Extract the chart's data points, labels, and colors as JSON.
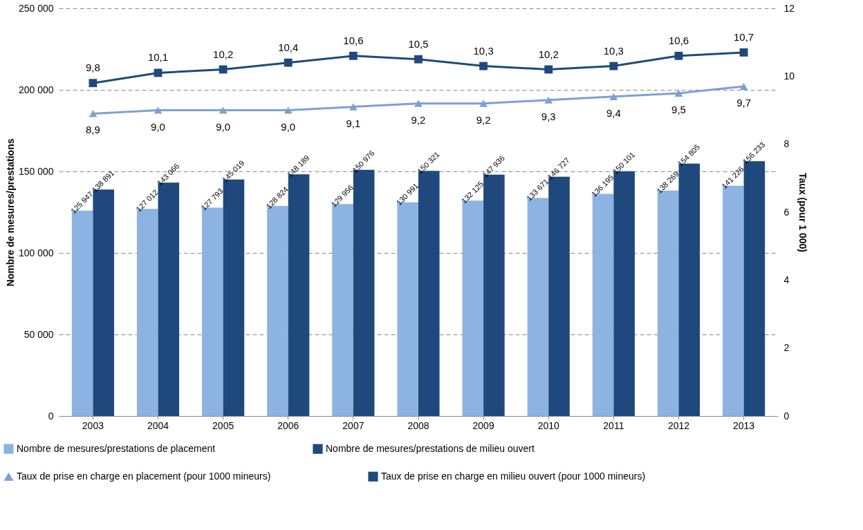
{
  "chart_data": {
    "type": "bar",
    "ylabel": "Nombre de mesures/prestations",
    "y2label": "Taux (pour 1 000)",
    "categories": [
      "2003",
      "2004",
      "2005",
      "2006",
      "2007",
      "2008",
      "2009",
      "2010",
      "2011",
      "2012",
      "2013"
    ],
    "series": [
      {
        "name": "Nombre de mesures/prestations de placement",
        "type": "bar",
        "color": "#8db3e2",
        "values": [
          125947,
          127012,
          127793,
          128824,
          129956,
          130991,
          132125,
          133671,
          136195,
          138269,
          141226
        ],
        "value_labels": [
          "125 947",
          "127 012",
          "127 793",
          "128 824",
          "129 956",
          "130 991",
          "132 125",
          "133 671",
          "136 195",
          "138 269",
          "141 226"
        ]
      },
      {
        "name": "Nombre de mesures/prestations de milieu ouvert",
        "type": "bar",
        "color": "#1f497d",
        "values": [
          138891,
          143066,
          145019,
          148189,
          150976,
          150321,
          147936,
          146727,
          150101,
          154805,
          156233
        ],
        "value_labels": [
          "138 891",
          "143 066",
          "145 019",
          "148 189",
          "150 976",
          "150 321",
          "147 936",
          "146 727",
          "150 101",
          "154 805",
          "156 233"
        ]
      },
      {
        "name": "Taux de prise en charge en placement (pour 1000 mineurs)",
        "type": "line",
        "axis": "y2",
        "marker": "triangle",
        "color": "#7f9fd3",
        "values": [
          8.9,
          9.0,
          9.0,
          9.0,
          9.1,
          9.2,
          9.2,
          9.3,
          9.4,
          9.5,
          9.7
        ],
        "value_labels": [
          "8,9",
          "9,0",
          "9,0",
          "9,0",
          "9,1",
          "9,2",
          "9,2",
          "9,3",
          "9,4",
          "9,5",
          "9,7"
        ]
      },
      {
        "name": "Taux de prise en charge en milieu ouvert (pour 1000 mineurs)",
        "type": "line",
        "axis": "y2",
        "marker": "square",
        "color": "#1f497d",
        "values": [
          9.8,
          10.1,
          10.2,
          10.4,
          10.6,
          10.5,
          10.3,
          10.2,
          10.3,
          10.6,
          10.7
        ],
        "value_labels": [
          "9,8",
          "10,1",
          "10,2",
          "10,4",
          "10,6",
          "10,5",
          "10,3",
          "10,2",
          "10,3",
          "10,6",
          "10,7"
        ]
      }
    ],
    "ylim": [
      0,
      250000
    ],
    "yticks": [
      0,
      {
        "value": 50000,
        "label": "50 000"
      },
      {
        "value": 100000,
        "label": "100 000"
      },
      {
        "value": 150000,
        "label": "150 000"
      },
      {
        "value": 200000,
        "label": "200 000"
      },
      {
        "value": 250000,
        "label": "250 000"
      }
    ],
    "y2lim": [
      0,
      12
    ],
    "y2ticks": [
      0,
      2,
      4,
      6,
      8,
      10,
      12
    ],
    "grid": "y",
    "legend": "bottom",
    "line_style": "solid"
  }
}
